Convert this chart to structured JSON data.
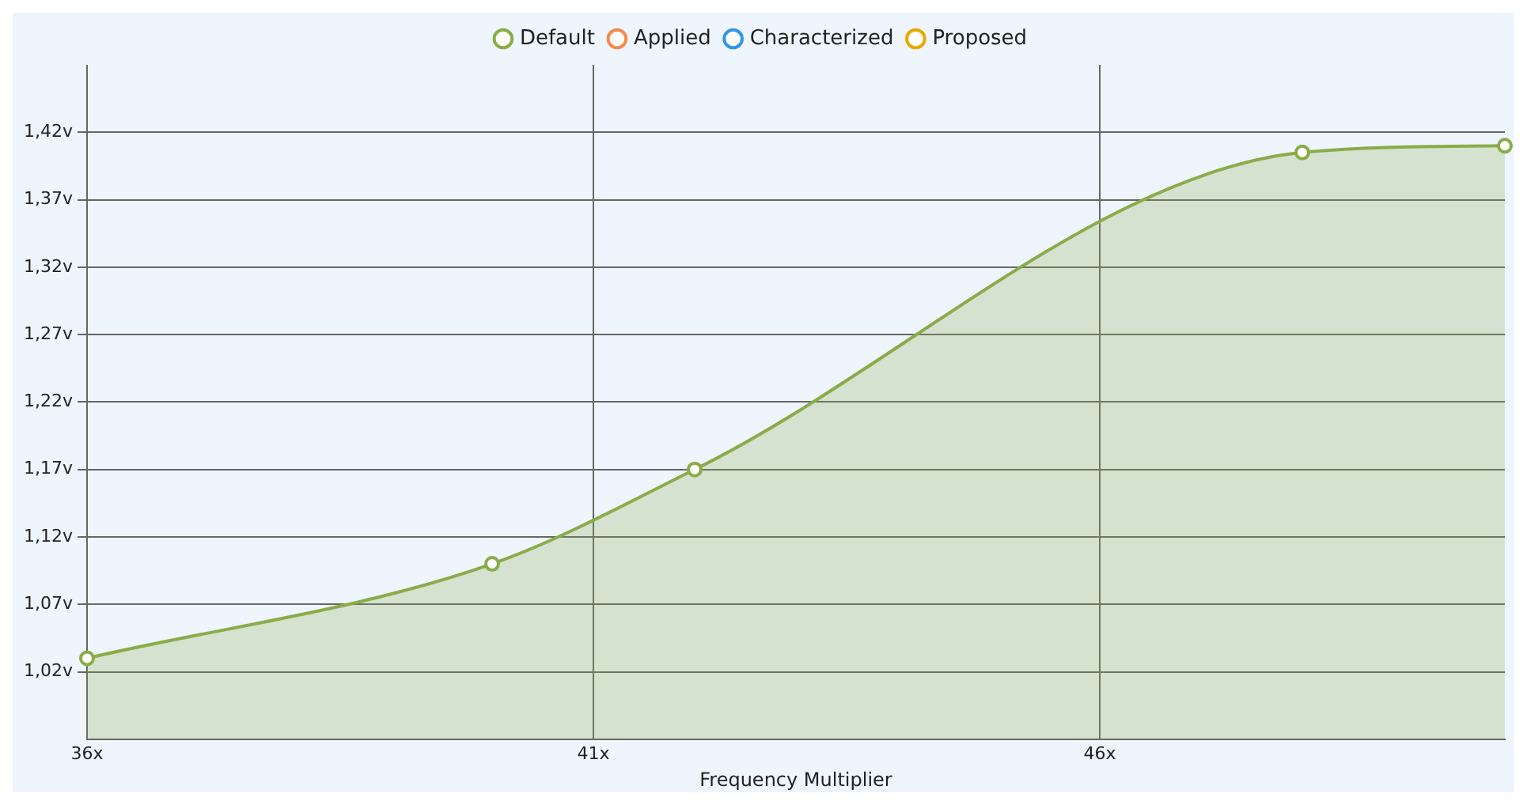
{
  "chart_data": {
    "type": "area",
    "xlabel": "Frequency Multiplier",
    "x": [
      36,
      40,
      42,
      48,
      50
    ],
    "xlim": [
      36,
      50
    ],
    "xticks": [
      {
        "value": 36,
        "label": "36x"
      },
      {
        "value": 41,
        "label": "41x"
      },
      {
        "value": 46,
        "label": "46x"
      }
    ],
    "ylim": [
      0.97,
      1.47
    ],
    "yticks": [
      {
        "value": 1.02,
        "label": "1,02v"
      },
      {
        "value": 1.07,
        "label": "1,07v"
      },
      {
        "value": 1.12,
        "label": "1,12v"
      },
      {
        "value": 1.17,
        "label": "1,17v"
      },
      {
        "value": 1.22,
        "label": "1,22v"
      },
      {
        "value": 1.27,
        "label": "1,27v"
      },
      {
        "value": 1.32,
        "label": "1,32v"
      },
      {
        "value": 1.37,
        "label": "1,37v"
      },
      {
        "value": 1.42,
        "label": "1,42v"
      }
    ],
    "series": [
      {
        "name": "Default",
        "color": "#8aac48",
        "values": [
          1.03,
          1.1,
          1.17,
          1.405,
          1.41
        ]
      },
      {
        "name": "Applied",
        "color": "#f58a4e",
        "values": [
          null,
          null,
          null,
          null,
          null
        ]
      },
      {
        "name": "Characterized",
        "color": "#2f96e8",
        "values": [
          null,
          null,
          null,
          null,
          null
        ]
      },
      {
        "name": "Proposed",
        "color": "#e8a800",
        "values": [
          null,
          null,
          null,
          null,
          null
        ]
      }
    ],
    "grid": true,
    "legend": "top",
    "marker": "circle",
    "line_style": "solid"
  }
}
